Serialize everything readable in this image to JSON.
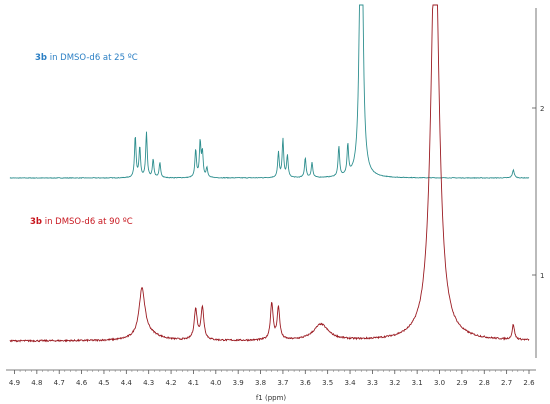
{
  "chart_data": {
    "type": "line",
    "title": "",
    "xlabel": "f1 (ppm)",
    "ylabel": "",
    "x_reversed": true,
    "xlim": [
      2.6,
      4.92
    ],
    "x_ticks": [
      "4.9",
      "4.8",
      "4.7",
      "4.6",
      "4.5",
      "4.4",
      "4.3",
      "4.2",
      "4.1",
      "4.0",
      "3.9",
      "3.8",
      "3.7",
      "3.6",
      "3.5",
      "3.4",
      "3.3",
      "3.2",
      "3.1",
      "3.0",
      "2.9",
      "2.8",
      "2.7",
      "2.6"
    ],
    "y_ticks": [
      "2",
      "1"
    ],
    "grid": false,
    "series": [
      {
        "key": "top",
        "label_bold": "3b",
        "label_rest": " in DMSO-d6 at 25 ºC",
        "color": "#2f8f8f",
        "label_color": "#2b7fc4",
        "peaks_ppm": [
          4.36,
          4.34,
          4.31,
          4.28,
          4.25,
          4.09,
          4.07,
          4.06,
          4.04,
          3.72,
          3.7,
          3.68,
          3.6,
          3.57,
          3.45,
          3.41,
          3.35,
          2.67
        ]
      },
      {
        "key": "bottom",
        "label_bold": "3b",
        "label_rest": " in DMSO-d6 at 90 ºC",
        "color": "#9b1b22",
        "label_color": "#c8171f",
        "peaks_ppm": [
          4.33,
          4.09,
          4.06,
          3.75,
          3.72,
          3.53,
          3.02,
          2.67
        ]
      }
    ]
  }
}
